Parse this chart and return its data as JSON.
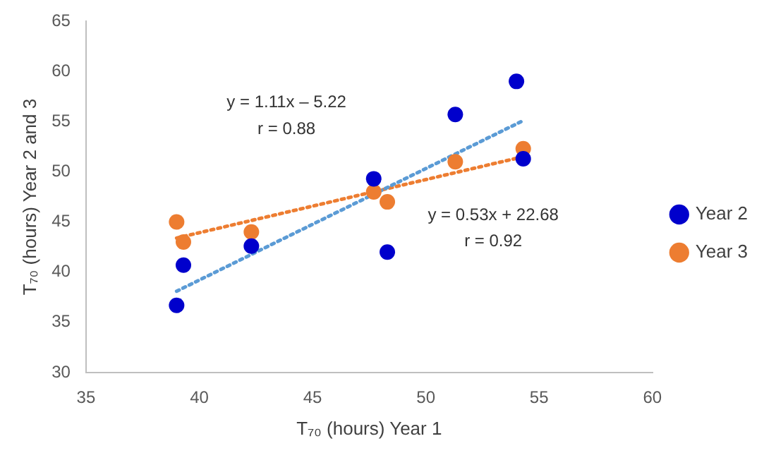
{
  "chart_data": {
    "type": "scatter",
    "xlabel": "T₇₀ (hours) Year 1",
    "ylabel": "T₇₀ (hours) Year 2 and 3",
    "xlim": [
      35,
      60
    ],
    "xticks": [
      35,
      40,
      45,
      50,
      55,
      60
    ],
    "ylim": [
      30,
      65
    ],
    "yticks": [
      30,
      35,
      40,
      45,
      50,
      55,
      60,
      65
    ],
    "grid": false,
    "legend": "right",
    "marker": "circle",
    "series": [
      {
        "name": "Year 2",
        "color": "#0000cc",
        "x": [
          39.0,
          39.3,
          42.3,
          47.7,
          48.3,
          51.3,
          54.0,
          54.3
        ],
        "values": [
          36.7,
          40.7,
          42.6,
          49.3,
          42.0,
          55.7,
          59.0,
          51.3
        ]
      },
      {
        "name": "Year 3",
        "color": "#ed7d31",
        "x": [
          39.0,
          39.3,
          42.3,
          47.7,
          48.3,
          51.3,
          54.3
        ],
        "values": [
          45.0,
          43.0,
          44.0,
          48.0,
          47.0,
          51.0,
          52.3
        ]
      },
      {
        "type": "line",
        "color": "#5b9bd5",
        "line_style": "dotted",
        "marker": "none",
        "x": [
          39.0,
          54.3
        ],
        "values": [
          38.1,
          55.1
        ]
      },
      {
        "type": "line",
        "color": "#ed7d31",
        "line_style": "dotted",
        "marker": "none",
        "x": [
          39.0,
          54.3
        ],
        "values": [
          43.4,
          51.5
        ]
      }
    ],
    "annotations": [
      "y = 1.11x – 5.22",
      "r = 0.88",
      "y = 0.53x + 22.68",
      "r = 0.92"
    ]
  }
}
